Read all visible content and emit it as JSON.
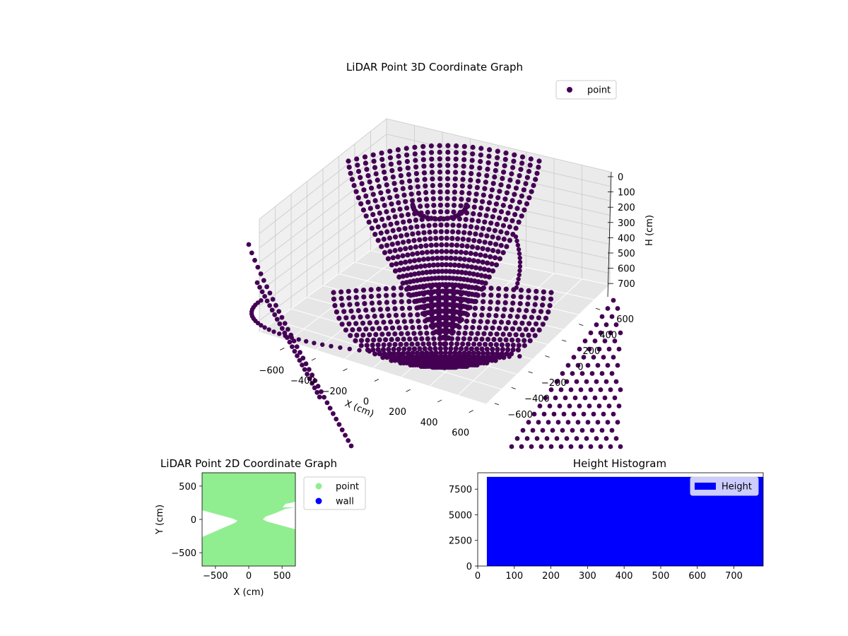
{
  "chart_data": [
    {
      "type": "scatter3d",
      "title": "LiDAR Point 3D Coordinate Graph",
      "xlabel": "X (cm)",
      "ylabel": "",
      "zlabel": "H (cm)",
      "xlim": [
        -700,
        700
      ],
      "ylim": [
        -700,
        700
      ],
      "zlim": [
        0,
        780
      ],
      "z_inverted": true,
      "x_ticks": [
        "-600",
        "-400",
        "-200",
        "0",
        "200",
        "400",
        "600"
      ],
      "y_ticks": [
        "-600",
        "-400",
        "-200",
        "0",
        "200",
        "400",
        "600"
      ],
      "z_ticks": [
        "0",
        "100",
        "200",
        "300",
        "400",
        "500",
        "600",
        "700"
      ],
      "grid": true,
      "legend": {
        "placement": "top-right",
        "entries": [
          {
            "label": "point",
            "color": "#440154"
          }
        ]
      },
      "series": [
        {
          "name": "point",
          "color": "#440154"
        }
      ]
    },
    {
      "type": "scatter",
      "title": "LiDAR Point 2D Coordinate Graph",
      "xlabel": "X (cm)",
      "ylabel": "Y (cm)",
      "xlim": [
        -700,
        700
      ],
      "ylim": [
        -700,
        700
      ],
      "x_ticks": [
        "−500",
        "0",
        "500"
      ],
      "y_ticks": [
        "−500",
        "0",
        "500"
      ],
      "legend": {
        "placement": "outside-right",
        "entries": [
          {
            "label": "point",
            "color": "#90ee90"
          },
          {
            "label": "wall",
            "color": "#0000ff"
          }
        ]
      },
      "series": [
        {
          "name": "point",
          "color": "#90ee90",
          "gaps": [
            {
              "side": "left",
              "x": [
                -700,
                -200
              ],
              "y_half_width_at_edge": 110
            },
            {
              "side": "right",
              "x": [
                200,
                700
              ],
              "y_half_width_at_edge": 120
            }
          ]
        },
        {
          "name": "wall",
          "color": "#0000ff",
          "count": 0
        }
      ]
    },
    {
      "type": "bar",
      "title": "Height Histogram",
      "xlabel": "",
      "ylabel": "",
      "xlim": [
        0,
        780
      ],
      "ylim": [
        0,
        9100
      ],
      "x_ticks": [
        "0",
        "100",
        "200",
        "300",
        "400",
        "500",
        "600",
        "700"
      ],
      "y_ticks": [
        "0",
        "2500",
        "5000",
        "7500"
      ],
      "series": [
        {
          "name": "Height",
          "color": "#0000ff",
          "bin_range": [
            25,
            780
          ],
          "value": 8700
        }
      ],
      "legend": {
        "placement": "top-right",
        "entries": [
          {
            "label": "Height",
            "color": "#0000ff"
          }
        ]
      }
    }
  ]
}
